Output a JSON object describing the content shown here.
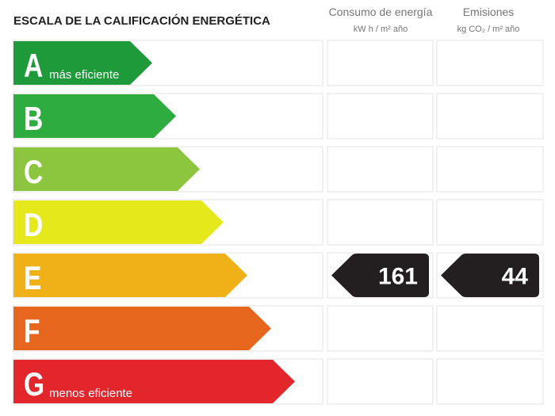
{
  "title": "ESCALA DE LA CALIFICACIÓN ENERGÉTICA",
  "columns": [
    {
      "title": "Consumo de energía",
      "unit": "kW h / m² año"
    },
    {
      "title": "Emisiones",
      "unit": "kg CO₂ / m² año"
    }
  ],
  "rows": [
    {
      "letter": "A",
      "note": "más eficiente",
      "color": "#1f9a3b"
    },
    {
      "letter": "B",
      "color": "#2fac3f"
    },
    {
      "letter": "C",
      "color": "#8cc63f"
    },
    {
      "letter": "D",
      "color": "#e5e91b"
    },
    {
      "letter": "E",
      "color": "#f0b118",
      "consumption": 161,
      "emissions": 44
    },
    {
      "letter": "F",
      "color": "#e6661d"
    },
    {
      "letter": "G",
      "note": "menos eficiente",
      "color": "#e3262c"
    }
  ]
}
